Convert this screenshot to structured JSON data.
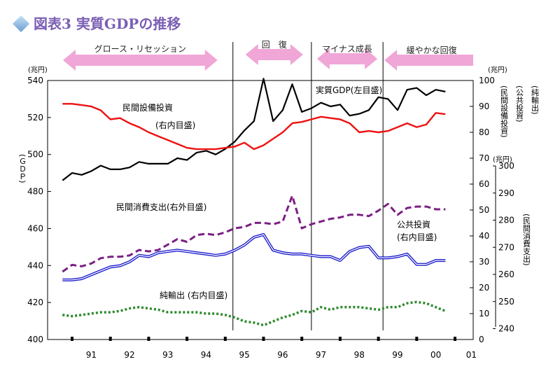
{
  "title": "図表3 実質GDPの推移",
  "colors": {
    "title": "#7a5fb3",
    "phase_arrow": "#f0a6d6",
    "gdp": "#000000",
    "equipment": "#ee1111",
    "consumption": "#7b1f83",
    "public": "#1a1acc",
    "net_exports": "#2d8a2d"
  },
  "phases": [
    {
      "label": "グロース・リセッション"
    },
    {
      "label": "回　復"
    },
    {
      "label": "マイナス成長"
    },
    {
      "label": "緩やかな回復"
    }
  ],
  "series_labels": {
    "gdp": "実質GDP(左目盛)",
    "equipment_1": "民間設備投資",
    "equipment_2": "(右内目盛)",
    "consumption": "民間消費支出(右外目盛)",
    "public_1": "公共投資",
    "public_2": "(右内目盛)",
    "net_exports": "純輸出 (右内目盛)"
  },
  "axis_labels": {
    "left_unit": "(兆円)",
    "left_title": "(ＧＤＰ)",
    "right_inner_unit": "(兆円)",
    "right_inner_title_1": "(民間設備投資)",
    "right_inner_title_2": "(公共投資)",
    "right_inner_title_3": "(純輸出)",
    "right_outer_unit": "(兆円)",
    "right_outer_title": "(民間消費支出)"
  },
  "chart_data": {
    "type": "line",
    "x_tick_labels": [
      "91",
      "92",
      "93",
      "94",
      "95",
      "96",
      "97",
      "98",
      "99",
      "00",
      "01"
    ],
    "left_axis": {
      "ticks": [
        "540",
        "520",
        "500",
        "480",
        "460",
        "440",
        "420",
        "400"
      ],
      "ylim": [
        400,
        540
      ]
    },
    "right_inner_axis": {
      "ticks": [
        "100",
        "90",
        "80",
        "70",
        "60",
        "50",
        "40",
        "30",
        "20",
        "10",
        "0"
      ],
      "ylim": [
        0,
        100
      ]
    },
    "right_outer_axis": {
      "ticks": [
        "300",
        "290",
        "280",
        "270",
        "260",
        "250",
        "240"
      ],
      "ylim": [
        236,
        300
      ]
    },
    "x_start": 1990.25,
    "x_step": 0.25,
    "series": [
      {
        "key": "gdp",
        "name": "実質GDP(左目盛)",
        "axis": "left",
        "values": [
          486,
          490,
          489,
          491,
          494,
          492,
          492,
          493,
          496,
          495,
          495,
          495,
          498,
          497,
          501,
          502,
          500,
          503,
          507,
          513,
          518,
          541,
          518,
          524,
          538,
          523,
          525,
          528,
          526,
          527,
          521,
          522,
          524,
          531,
          530,
          524,
          535,
          536,
          532,
          535,
          534
        ]
      },
      {
        "key": "equipment",
        "name": "民間設備投資",
        "axis": "right_inner",
        "values": [
          91,
          91,
          90.5,
          90,
          88.5,
          85,
          85.5,
          83.5,
          82,
          80,
          78.5,
          77,
          75.5,
          74,
          73.5,
          73.5,
          73.5,
          74,
          74.5,
          76,
          73.5,
          75,
          77.5,
          80,
          83.5,
          84,
          85,
          86,
          85.5,
          85,
          83.5,
          80,
          80.5,
          80,
          80.5,
          82,
          83.5,
          82,
          83,
          87.5,
          87
        ]
      },
      {
        "key": "consumption",
        "name": "民間消費支出(右外目盛)",
        "axis": "right_outer",
        "dashed": true,
        "values": [
          261,
          263.5,
          263,
          264,
          266,
          266.5,
          266.5,
          267,
          269,
          268.5,
          269,
          271,
          273,
          272,
          274.5,
          275,
          274.5,
          275.5,
          277,
          277.5,
          279,
          279,
          278.5,
          279.5,
          289,
          277,
          278.5,
          279.5,
          280.5,
          281,
          282,
          282,
          281.5,
          283.5,
          286,
          282,
          284.5,
          285,
          285,
          284,
          284
        ]
      },
      {
        "key": "public",
        "name": "公共投資",
        "axis": "right_inner",
        "double": true,
        "values": [
          23,
          23,
          23.5,
          25,
          26.5,
          28,
          28.5,
          30,
          32.5,
          32,
          33.5,
          34,
          34.5,
          34,
          33.5,
          33,
          32.5,
          33,
          34.5,
          36.5,
          39.5,
          40.5,
          34.5,
          33.5,
          33,
          33,
          32.5,
          32,
          32,
          30.5,
          34,
          35.5,
          36,
          31.5,
          31.5,
          32,
          33,
          29,
          29,
          30.5,
          30.5
        ]
      },
      {
        "key": "net_exports",
        "name": "純輸出 (右内目盛)",
        "axis": "right_inner",
        "dotted": true,
        "values": [
          9.5,
          9,
          9.5,
          10,
          10.5,
          10.5,
          11,
          12,
          12.5,
          12,
          11.5,
          10.5,
          10.5,
          10.5,
          10.5,
          10,
          10,
          9.5,
          8.5,
          7,
          6.5,
          5.5,
          7,
          8.5,
          9.5,
          11,
          10.5,
          12.5,
          11.5,
          12.5,
          12.5,
          12.5,
          12,
          11.5,
          12.5,
          12.5,
          14,
          14.5,
          14,
          12.5,
          11
        ]
      }
    ],
    "phase_dividers": [
      1994.7,
      1996.75,
      1998.62
    ],
    "grid": false
  }
}
